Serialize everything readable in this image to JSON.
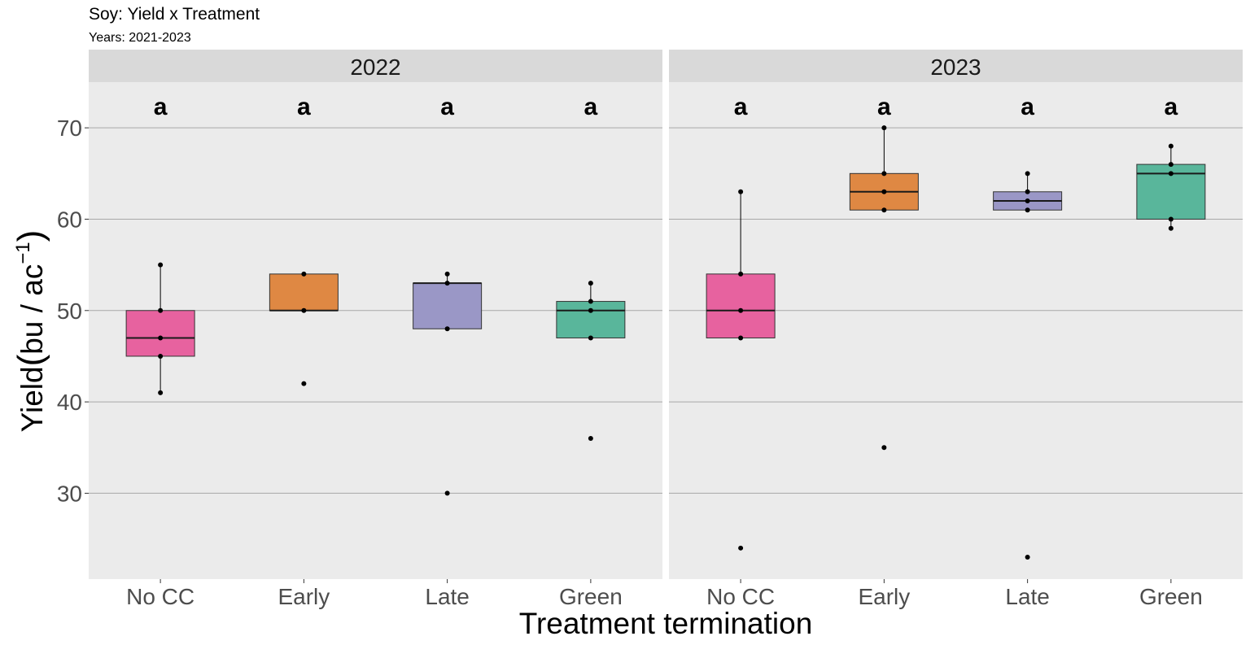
{
  "chart_data": {
    "type": "boxplot",
    "title": "Soy: Yield x Treatment",
    "subtitle": "Years: 2021-2023",
    "xlabel": "Treatment termination",
    "ylabel": {
      "base": "Yield",
      "unit": "bu",
      "per": "ac",
      "exponent": "−1"
    },
    "ylim": [
      20.6,
      75
    ],
    "yticks": [
      30,
      40,
      50,
      60,
      70
    ],
    "grid": true,
    "categories": [
      "No CC",
      "Early",
      "Late",
      "Green"
    ],
    "colors": {
      "No CC": "#e7629f",
      "Early": "#df8843",
      "Late": "#9a97c6",
      "Green": "#59b69b"
    },
    "panels": [
      {
        "facet": "2022",
        "groups": [
          {
            "treatment": "No CC",
            "letter": "a",
            "q1": 45,
            "median": 47,
            "q3": 50,
            "whisker_low": 41,
            "whisker_high": 55,
            "points": [
              41,
              45,
              47,
              50,
              55
            ]
          },
          {
            "treatment": "Early",
            "letter": "a",
            "q1": 50,
            "median": 50,
            "q3": 54,
            "whisker_low": 50,
            "whisker_high": 54,
            "points": [
              42,
              50,
              54
            ]
          },
          {
            "treatment": "Late",
            "letter": "a",
            "q1": 48,
            "median": 53,
            "q3": 53,
            "whisker_low": 48,
            "whisker_high": 54,
            "points": [
              30,
              48,
              53,
              54
            ]
          },
          {
            "treatment": "Green",
            "letter": "a",
            "q1": 47,
            "median": 50,
            "q3": 51,
            "whisker_low": 47,
            "whisker_high": 53,
            "points": [
              36,
              47,
              50,
              51,
              53
            ]
          }
        ]
      },
      {
        "facet": "2023",
        "groups": [
          {
            "treatment": "No CC",
            "letter": "a",
            "q1": 47,
            "median": 50,
            "q3": 54,
            "whisker_low": 47,
            "whisker_high": 63,
            "points": [
              24,
              47,
              50,
              54,
              63
            ]
          },
          {
            "treatment": "Early",
            "letter": "a",
            "q1": 61,
            "median": 63,
            "q3": 65,
            "whisker_low": 61,
            "whisker_high": 70,
            "points": [
              35,
              61,
              63,
              65,
              70
            ]
          },
          {
            "treatment": "Late",
            "letter": "a",
            "q1": 61,
            "median": 62,
            "q3": 63,
            "whisker_low": 61,
            "whisker_high": 65,
            "points": [
              23,
              61,
              62,
              63,
              65
            ]
          },
          {
            "treatment": "Green",
            "letter": "a",
            "q1": 60,
            "median": 65,
            "q3": 66,
            "whisker_low": 59,
            "whisker_high": 68,
            "points": [
              59,
              60,
              65,
              66,
              68
            ]
          }
        ]
      }
    ]
  }
}
